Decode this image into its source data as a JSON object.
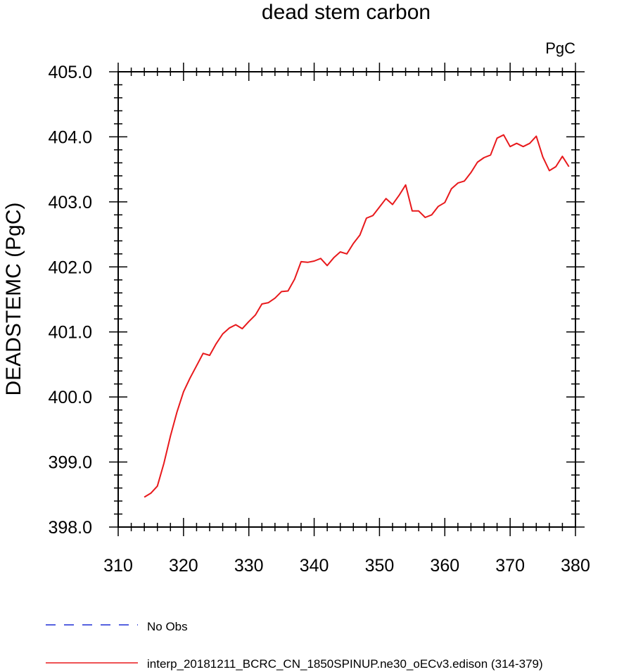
{
  "chart_data": {
    "type": "line",
    "title": "dead stem carbon",
    "units_label": "PgC",
    "xlabel": "",
    "ylabel": "DEADSTEMC  (PgC)",
    "xlim": [
      310,
      380
    ],
    "ylim": [
      398.0,
      405.0
    ],
    "x_ticks": [
      "310",
      "320",
      "330",
      "340",
      "350",
      "360",
      "370",
      "380"
    ],
    "y_ticks": [
      "398.0",
      "399.0",
      "400.0",
      "401.0",
      "402.0",
      "403.0",
      "404.0",
      "405.0"
    ],
    "grid": false,
    "legend_position": "bottom-left",
    "legend": [
      {
        "name": "No Obs",
        "color": "#1f2fd6",
        "style": "dashed"
      },
      {
        "name": "interp_20181211_BCRC_CN_1850SPINUP.ne30_oECv3.edison (314-379)",
        "color": "#e8191c",
        "style": "solid"
      }
    ],
    "series": [
      {
        "name": "interp_20181211_BCRC_CN_1850SPINUP.ne30_oECv3.edison (314-379)",
        "color": "#e8191c",
        "x": [
          314,
          315,
          316,
          317,
          318,
          319,
          320,
          321,
          322,
          323,
          324,
          325,
          326,
          327,
          328,
          329,
          330,
          331,
          332,
          333,
          334,
          335,
          336,
          337,
          338,
          339,
          340,
          341,
          342,
          343,
          344,
          345,
          346,
          347,
          348,
          349,
          350,
          351,
          352,
          353,
          354,
          355,
          356,
          357,
          358,
          359,
          360,
          361,
          362,
          363,
          364,
          365,
          366,
          367,
          368,
          369,
          370,
          371,
          372,
          373,
          374,
          375,
          376,
          377,
          378,
          379
        ],
        "y": [
          398.46,
          398.52,
          398.63,
          398.98,
          399.4,
          399.77,
          400.08,
          400.29,
          400.48,
          400.67,
          400.64,
          400.82,
          400.97,
          401.06,
          401.11,
          401.05,
          401.16,
          401.26,
          401.43,
          401.45,
          401.52,
          401.62,
          401.63,
          401.81,
          402.08,
          402.07,
          402.09,
          402.13,
          402.02,
          402.14,
          402.23,
          402.2,
          402.36,
          402.49,
          402.75,
          402.79,
          402.92,
          403.05,
          402.96,
          403.1,
          403.26,
          402.86,
          402.86,
          402.76,
          402.8,
          402.93,
          402.99,
          403.2,
          403.29,
          403.32,
          403.45,
          403.61,
          403.68,
          403.72,
          403.98,
          404.03,
          403.85,
          403.9,
          403.85,
          403.9,
          404.01,
          403.69,
          403.48,
          403.54,
          403.7,
          403.54
        ]
      }
    ]
  }
}
